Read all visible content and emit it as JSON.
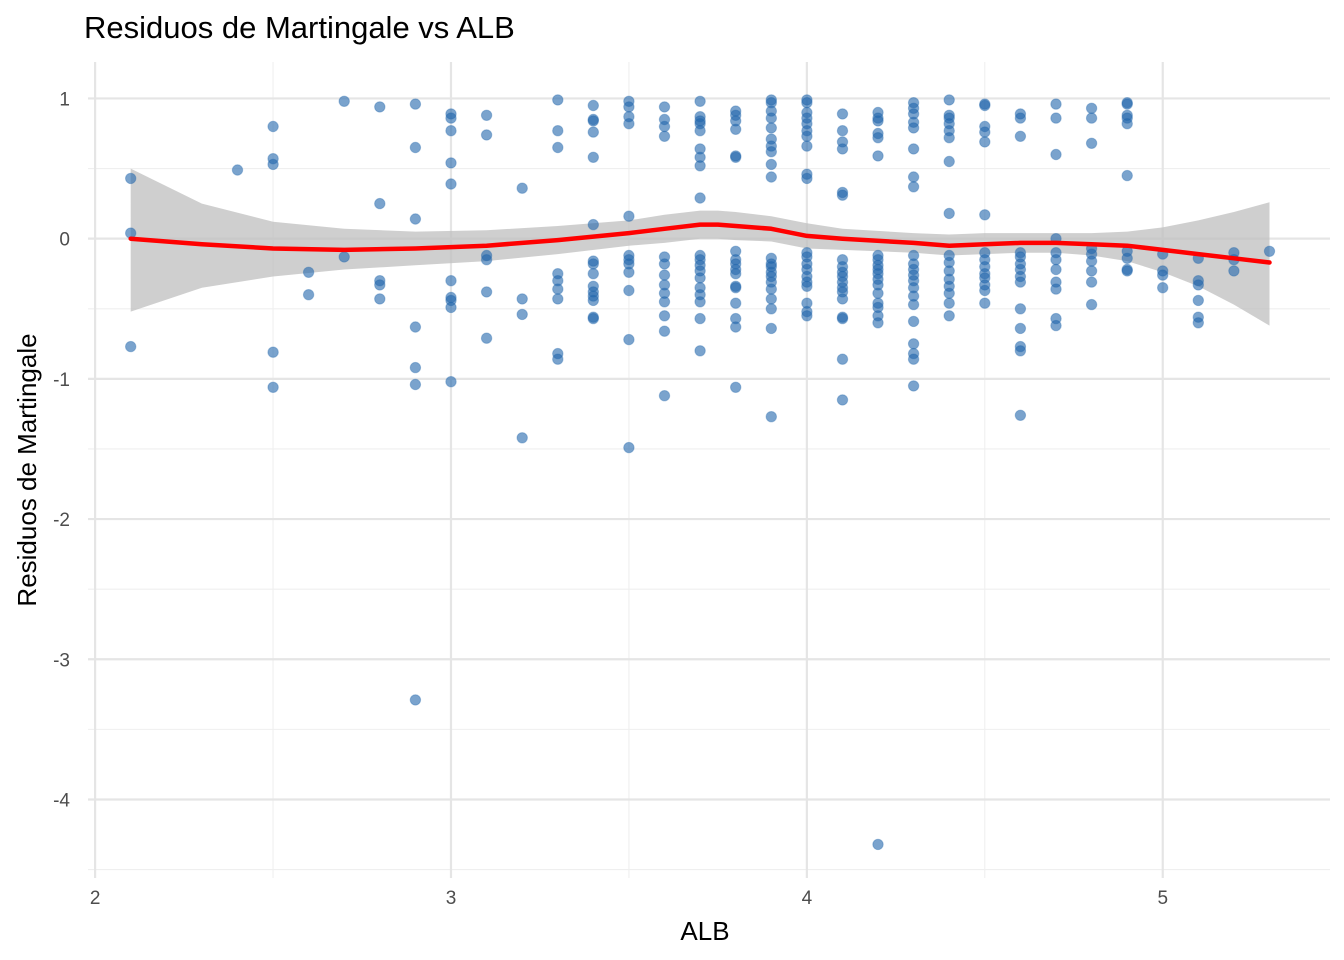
{
  "chart_data": {
    "type": "scatter",
    "title": "Residuos de Martingale vs ALB",
    "xlabel": "ALB",
    "ylabel": "Residuos de Martingale",
    "xlim": [
      1.98,
      5.47
    ],
    "ylim": [
      -4.56,
      1.26
    ],
    "x_ticks": [
      2,
      3,
      4,
      5
    ],
    "x_tick_labels": [
      "2",
      "3",
      "4",
      "5"
    ],
    "y_ticks": [
      1,
      0,
      -1,
      -2,
      -3,
      -4
    ],
    "y_tick_labels": [
      "1",
      "0",
      "-1",
      "-2",
      "-3",
      "-4"
    ],
    "grid": true,
    "legend": "none",
    "colors": {
      "points": "#2166ac",
      "smooth_line": "#ff0000",
      "confidence_band": "#bfbfbf"
    },
    "points": [
      [
        2.1,
        0.43
      ],
      [
        2.1,
        0.04
      ],
      [
        2.1,
        -0.77
      ],
      [
        2.4,
        0.49
      ],
      [
        2.5,
        0.8
      ],
      [
        2.5,
        0.57
      ],
      [
        2.5,
        0.53
      ],
      [
        2.5,
        -0.81
      ],
      [
        2.5,
        -1.06
      ],
      [
        2.6,
        -0.24
      ],
      [
        2.6,
        -0.4
      ],
      [
        2.7,
        0.98
      ],
      [
        2.7,
        -0.13
      ],
      [
        2.8,
        0.94
      ],
      [
        2.8,
        0.25
      ],
      [
        2.8,
        -0.3
      ],
      [
        2.8,
        -0.33
      ],
      [
        2.8,
        -0.43
      ],
      [
        2.9,
        0.96
      ],
      [
        2.9,
        0.65
      ],
      [
        2.9,
        0.14
      ],
      [
        2.9,
        -0.63
      ],
      [
        2.9,
        -0.92
      ],
      [
        2.9,
        -1.04
      ],
      [
        2.9,
        -3.29
      ],
      [
        3.0,
        0.89
      ],
      [
        3.0,
        0.86
      ],
      [
        3.0,
        0.77
      ],
      [
        3.0,
        0.54
      ],
      [
        3.0,
        0.39
      ],
      [
        3.0,
        -0.3
      ],
      [
        3.0,
        -0.42
      ],
      [
        3.0,
        -0.44
      ],
      [
        3.0,
        -0.49
      ],
      [
        3.0,
        -1.02
      ],
      [
        3.1,
        0.88
      ],
      [
        3.1,
        0.74
      ],
      [
        3.1,
        -0.12
      ],
      [
        3.1,
        -0.15
      ],
      [
        3.1,
        -0.38
      ],
      [
        3.1,
        -0.71
      ],
      [
        3.2,
        0.36
      ],
      [
        3.2,
        -0.43
      ],
      [
        3.2,
        -0.54
      ],
      [
        3.2,
        -1.42
      ],
      [
        3.3,
        0.99
      ],
      [
        3.3,
        0.77
      ],
      [
        3.3,
        0.65
      ],
      [
        3.3,
        -0.25
      ],
      [
        3.3,
        -0.3
      ],
      [
        3.3,
        -0.36
      ],
      [
        3.3,
        -0.43
      ],
      [
        3.3,
        -0.82
      ],
      [
        3.3,
        -0.86
      ],
      [
        3.4,
        0.95
      ],
      [
        3.4,
        0.85
      ],
      [
        3.4,
        0.84
      ],
      [
        3.4,
        0.76
      ],
      [
        3.4,
        0.58
      ],
      [
        3.4,
        0.1
      ],
      [
        3.4,
        -0.16
      ],
      [
        3.4,
        -0.18
      ],
      [
        3.4,
        -0.25
      ],
      [
        3.4,
        -0.34
      ],
      [
        3.4,
        -0.38
      ],
      [
        3.4,
        -0.41
      ],
      [
        3.4,
        -0.44
      ],
      [
        3.4,
        -0.56
      ],
      [
        3.4,
        -0.57
      ],
      [
        3.5,
        0.98
      ],
      [
        3.5,
        0.94
      ],
      [
        3.5,
        0.87
      ],
      [
        3.5,
        0.82
      ],
      [
        3.5,
        0.16
      ],
      [
        3.5,
        -0.12
      ],
      [
        3.5,
        -0.15
      ],
      [
        3.5,
        -0.18
      ],
      [
        3.5,
        -0.24
      ],
      [
        3.5,
        -0.37
      ],
      [
        3.5,
        -0.72
      ],
      [
        3.5,
        -1.49
      ],
      [
        3.6,
        0.94
      ],
      [
        3.6,
        0.85
      ],
      [
        3.6,
        0.8
      ],
      [
        3.6,
        0.73
      ],
      [
        3.6,
        -0.13
      ],
      [
        3.6,
        -0.18
      ],
      [
        3.6,
        -0.26
      ],
      [
        3.6,
        -0.33
      ],
      [
        3.6,
        -0.39
      ],
      [
        3.6,
        -0.45
      ],
      [
        3.6,
        -0.55
      ],
      [
        3.6,
        -0.66
      ],
      [
        3.6,
        -1.12
      ],
      [
        3.7,
        0.98
      ],
      [
        3.7,
        0.87
      ],
      [
        3.7,
        0.84
      ],
      [
        3.7,
        0.82
      ],
      [
        3.7,
        0.77
      ],
      [
        3.7,
        0.64
      ],
      [
        3.7,
        0.58
      ],
      [
        3.7,
        0.52
      ],
      [
        3.7,
        0.29
      ],
      [
        3.7,
        -0.12
      ],
      [
        3.7,
        -0.15
      ],
      [
        3.7,
        -0.19
      ],
      [
        3.7,
        -0.23
      ],
      [
        3.7,
        -0.28
      ],
      [
        3.7,
        -0.35
      ],
      [
        3.7,
        -0.4
      ],
      [
        3.7,
        -0.45
      ],
      [
        3.7,
        -0.57
      ],
      [
        3.7,
        -0.8
      ],
      [
        3.8,
        0.91
      ],
      [
        3.8,
        0.88
      ],
      [
        3.8,
        0.84
      ],
      [
        3.8,
        0.78
      ],
      [
        3.8,
        0.59
      ],
      [
        3.8,
        0.58
      ],
      [
        3.8,
        -0.09
      ],
      [
        3.8,
        -0.15
      ],
      [
        3.8,
        -0.18
      ],
      [
        3.8,
        -0.22
      ],
      [
        3.8,
        -0.25
      ],
      [
        3.8,
        -0.34
      ],
      [
        3.8,
        -0.35
      ],
      [
        3.8,
        -0.46
      ],
      [
        3.8,
        -0.57
      ],
      [
        3.8,
        -0.63
      ],
      [
        3.8,
        -1.06
      ],
      [
        3.9,
        0.99
      ],
      [
        3.9,
        0.97
      ],
      [
        3.9,
        0.91
      ],
      [
        3.9,
        0.86
      ],
      [
        3.9,
        0.79
      ],
      [
        3.9,
        0.71
      ],
      [
        3.9,
        0.66
      ],
      [
        3.9,
        0.62
      ],
      [
        3.9,
        0.53
      ],
      [
        3.9,
        0.44
      ],
      [
        3.9,
        -0.14
      ],
      [
        3.9,
        -0.18
      ],
      [
        3.9,
        -0.2
      ],
      [
        3.9,
        -0.24
      ],
      [
        3.9,
        -0.27
      ],
      [
        3.9,
        -0.31
      ],
      [
        3.9,
        -0.36
      ],
      [
        3.9,
        -0.43
      ],
      [
        3.9,
        -0.5
      ],
      [
        3.9,
        -0.64
      ],
      [
        3.9,
        -1.27
      ],
      [
        4.0,
        0.99
      ],
      [
        4.0,
        0.97
      ],
      [
        4.0,
        0.9
      ],
      [
        4.0,
        0.86
      ],
      [
        4.0,
        0.82
      ],
      [
        4.0,
        0.77
      ],
      [
        4.0,
        0.73
      ],
      [
        4.0,
        0.66
      ],
      [
        4.0,
        0.46
      ],
      [
        4.0,
        0.43
      ],
      [
        4.0,
        -0.1
      ],
      [
        4.0,
        -0.13
      ],
      [
        4.0,
        -0.18
      ],
      [
        4.0,
        -0.22
      ],
      [
        4.0,
        -0.27
      ],
      [
        4.0,
        -0.31
      ],
      [
        4.0,
        -0.34
      ],
      [
        4.0,
        -0.46
      ],
      [
        4.0,
        -0.52
      ],
      [
        4.0,
        -0.55
      ],
      [
        4.1,
        0.89
      ],
      [
        4.1,
        0.77
      ],
      [
        4.1,
        0.69
      ],
      [
        4.1,
        0.64
      ],
      [
        4.1,
        0.33
      ],
      [
        4.1,
        0.31
      ],
      [
        4.1,
        -0.15
      ],
      [
        4.1,
        -0.2
      ],
      [
        4.1,
        -0.24
      ],
      [
        4.1,
        -0.27
      ],
      [
        4.1,
        -0.31
      ],
      [
        4.1,
        -0.35
      ],
      [
        4.1,
        -0.38
      ],
      [
        4.1,
        -0.43
      ],
      [
        4.1,
        -0.56
      ],
      [
        4.1,
        -0.57
      ],
      [
        4.1,
        -0.86
      ],
      [
        4.1,
        -1.15
      ],
      [
        4.2,
        0.9
      ],
      [
        4.2,
        0.86
      ],
      [
        4.2,
        0.84
      ],
      [
        4.2,
        0.75
      ],
      [
        4.2,
        0.72
      ],
      [
        4.2,
        0.59
      ],
      [
        4.2,
        -0.12
      ],
      [
        4.2,
        -0.15
      ],
      [
        4.2,
        -0.19
      ],
      [
        4.2,
        -0.22
      ],
      [
        4.2,
        -0.25
      ],
      [
        4.2,
        -0.29
      ],
      [
        4.2,
        -0.33
      ],
      [
        4.2,
        -0.39
      ],
      [
        4.2,
        -0.46
      ],
      [
        4.2,
        -0.49
      ],
      [
        4.2,
        -0.55
      ],
      [
        4.2,
        -0.6
      ],
      [
        4.2,
        -4.32
      ],
      [
        4.3,
        0.97
      ],
      [
        4.3,
        0.93
      ],
      [
        4.3,
        0.89
      ],
      [
        4.3,
        0.83
      ],
      [
        4.3,
        0.79
      ],
      [
        4.3,
        0.64
      ],
      [
        4.3,
        0.44
      ],
      [
        4.3,
        0.37
      ],
      [
        4.3,
        -0.12
      ],
      [
        4.3,
        -0.18
      ],
      [
        4.3,
        -0.22
      ],
      [
        4.3,
        -0.26
      ],
      [
        4.3,
        -0.3
      ],
      [
        4.3,
        -0.35
      ],
      [
        4.3,
        -0.41
      ],
      [
        4.3,
        -0.47
      ],
      [
        4.3,
        -0.59
      ],
      [
        4.3,
        -0.75
      ],
      [
        4.3,
        -0.82
      ],
      [
        4.3,
        -0.86
      ],
      [
        4.3,
        -1.05
      ],
      [
        4.4,
        0.99
      ],
      [
        4.4,
        0.88
      ],
      [
        4.4,
        0.86
      ],
      [
        4.4,
        0.82
      ],
      [
        4.4,
        0.77
      ],
      [
        4.4,
        0.72
      ],
      [
        4.4,
        0.55
      ],
      [
        4.4,
        0.18
      ],
      [
        4.4,
        -0.12
      ],
      [
        4.4,
        -0.17
      ],
      [
        4.4,
        -0.23
      ],
      [
        4.4,
        -0.29
      ],
      [
        4.4,
        -0.34
      ],
      [
        4.4,
        -0.39
      ],
      [
        4.4,
        -0.46
      ],
      [
        4.4,
        -0.55
      ],
      [
        4.5,
        0.96
      ],
      [
        4.5,
        0.95
      ],
      [
        4.5,
        0.8
      ],
      [
        4.5,
        0.76
      ],
      [
        4.5,
        0.69
      ],
      [
        4.5,
        0.17
      ],
      [
        4.5,
        -0.1
      ],
      [
        4.5,
        -0.15
      ],
      [
        4.5,
        -0.2
      ],
      [
        4.5,
        -0.25
      ],
      [
        4.5,
        -0.28
      ],
      [
        4.5,
        -0.33
      ],
      [
        4.5,
        -0.37
      ],
      [
        4.5,
        -0.46
      ],
      [
        4.6,
        0.89
      ],
      [
        4.6,
        0.86
      ],
      [
        4.6,
        0.73
      ],
      [
        4.6,
        -0.1
      ],
      [
        4.6,
        -0.13
      ],
      [
        4.6,
        -0.18
      ],
      [
        4.6,
        -0.22
      ],
      [
        4.6,
        -0.27
      ],
      [
        4.6,
        -0.31
      ],
      [
        4.6,
        -0.5
      ],
      [
        4.6,
        -0.64
      ],
      [
        4.6,
        -0.77
      ],
      [
        4.6,
        -0.8
      ],
      [
        4.6,
        -1.26
      ],
      [
        4.7,
        0.96
      ],
      [
        4.7,
        0.86
      ],
      [
        4.7,
        0.6
      ],
      [
        4.7,
        0.0
      ],
      [
        4.7,
        -0.1
      ],
      [
        4.7,
        -0.15
      ],
      [
        4.7,
        -0.22
      ],
      [
        4.7,
        -0.31
      ],
      [
        4.7,
        -0.36
      ],
      [
        4.7,
        -0.57
      ],
      [
        4.7,
        -0.62
      ],
      [
        4.8,
        0.93
      ],
      [
        4.8,
        0.86
      ],
      [
        4.8,
        0.68
      ],
      [
        4.8,
        -0.07
      ],
      [
        4.8,
        -0.11
      ],
      [
        4.8,
        -0.16
      ],
      [
        4.8,
        -0.23
      ],
      [
        4.8,
        -0.31
      ],
      [
        4.8,
        -0.47
      ],
      [
        4.9,
        0.97
      ],
      [
        4.9,
        0.96
      ],
      [
        4.9,
        0.88
      ],
      [
        4.9,
        0.86
      ],
      [
        4.9,
        0.82
      ],
      [
        4.9,
        0.45
      ],
      [
        4.9,
        -0.09
      ],
      [
        4.9,
        -0.14
      ],
      [
        4.9,
        -0.22
      ],
      [
        4.9,
        -0.23
      ],
      [
        5.0,
        -0.11
      ],
      [
        5.0,
        -0.23
      ],
      [
        5.0,
        -0.26
      ],
      [
        5.0,
        -0.35
      ],
      [
        5.1,
        -0.14
      ],
      [
        5.1,
        -0.3
      ],
      [
        5.1,
        -0.33
      ],
      [
        5.1,
        -0.44
      ],
      [
        5.1,
        -0.56
      ],
      [
        5.1,
        -0.6
      ],
      [
        5.2,
        -0.1
      ],
      [
        5.2,
        -0.15
      ],
      [
        5.2,
        -0.23
      ],
      [
        5.3,
        -0.09
      ]
    ],
    "smooth": {
      "x": [
        2.1,
        2.3,
        2.5,
        2.7,
        2.9,
        3.1,
        3.3,
        3.5,
        3.6,
        3.7,
        3.75,
        3.8,
        3.9,
        4.0,
        4.1,
        4.3,
        4.4,
        4.5,
        4.6,
        4.7,
        4.8,
        4.9,
        5.0,
        5.1,
        5.2,
        5.3
      ],
      "y": [
        0.0,
        -0.04,
        -0.07,
        -0.08,
        -0.07,
        -0.05,
        -0.01,
        0.04,
        0.07,
        0.1,
        0.1,
        0.09,
        0.07,
        0.02,
        0.0,
        -0.03,
        -0.05,
        -0.04,
        -0.03,
        -0.03,
        -0.04,
        -0.05,
        -0.08,
        -0.11,
        -0.14,
        -0.17
      ],
      "upper": [
        0.5,
        0.25,
        0.12,
        0.07,
        0.05,
        0.06,
        0.09,
        0.13,
        0.17,
        0.2,
        0.2,
        0.19,
        0.16,
        0.11,
        0.07,
        0.04,
        0.03,
        0.04,
        0.04,
        0.04,
        0.04,
        0.05,
        0.08,
        0.13,
        0.19,
        0.26
      ],
      "lower": [
        -0.52,
        -0.35,
        -0.27,
        -0.22,
        -0.19,
        -0.16,
        -0.11,
        -0.05,
        -0.03,
        0.0,
        0.0,
        -0.01,
        -0.02,
        -0.07,
        -0.08,
        -0.1,
        -0.12,
        -0.11,
        -0.1,
        -0.1,
        -0.12,
        -0.16,
        -0.24,
        -0.34,
        -0.47,
        -0.62
      ]
    }
  }
}
